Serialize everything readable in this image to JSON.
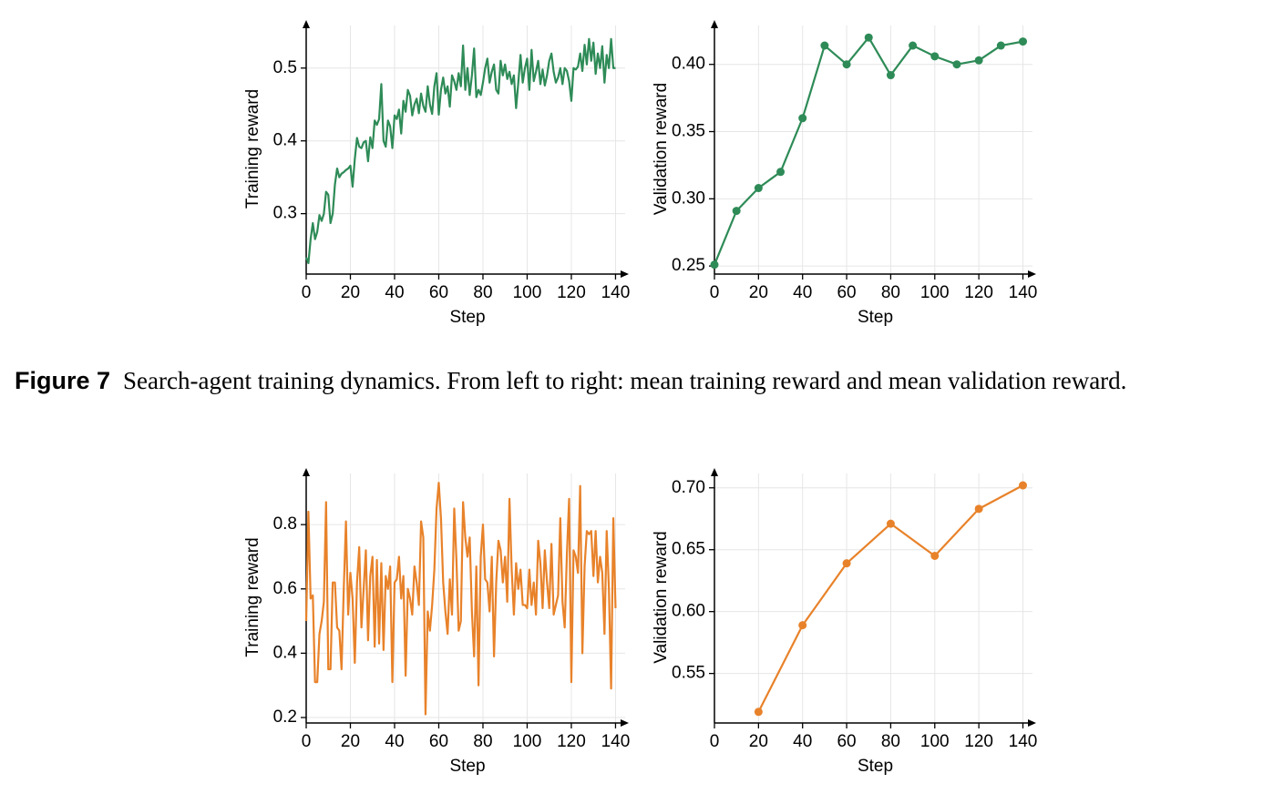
{
  "caption": {
    "label": "Figure 7",
    "text": "Search-agent training dynamics. From left to right: mean training reward and mean validation reward."
  },
  "chart_data": [
    {
      "type": "line",
      "xlabel": "Step",
      "ylabel": "Training reward",
      "color": "#2e8b57",
      "marker": false,
      "grid": true,
      "xlim": [
        0,
        146
      ],
      "xticks": [
        0,
        20,
        40,
        60,
        80,
        100,
        120,
        140
      ],
      "ylim": [
        0.217,
        0.566
      ],
      "yticks": [
        0.3,
        0.4,
        0.5
      ],
      "x": [
        0,
        1,
        2,
        3,
        4,
        5,
        6,
        7,
        8,
        9,
        10,
        11,
        12,
        13,
        14,
        15,
        16,
        17,
        18,
        19,
        20,
        21,
        22,
        23,
        24,
        25,
        26,
        27,
        28,
        29,
        30,
        31,
        32,
        33,
        34,
        35,
        36,
        37,
        38,
        39,
        40,
        41,
        42,
        43,
        44,
        45,
        46,
        47,
        48,
        49,
        50,
        51,
        52,
        53,
        54,
        55,
        56,
        57,
        58,
        59,
        60,
        61,
        62,
        63,
        64,
        65,
        66,
        67,
        68,
        69,
        70,
        71,
        72,
        73,
        74,
        75,
        76,
        77,
        78,
        79,
        80,
        81,
        82,
        83,
        84,
        85,
        86,
        87,
        88,
        89,
        90,
        91,
        92,
        93,
        94,
        95,
        96,
        97,
        98,
        99,
        100,
        101,
        102,
        103,
        104,
        105,
        106,
        107,
        108,
        109,
        110,
        111,
        112,
        113,
        114,
        115,
        116,
        117,
        118,
        119,
        120,
        121,
        122,
        123,
        124,
        125,
        126,
        127,
        128,
        129,
        130,
        131,
        132,
        133,
        134,
        135,
        136,
        137,
        138,
        139,
        140
      ],
      "values": [
        0.24,
        0.232,
        0.265,
        0.287,
        0.265,
        0.275,
        0.298,
        0.29,
        0.3,
        0.33,
        0.326,
        0.287,
        0.3,
        0.34,
        0.362,
        0.35,
        0.355,
        0.357,
        0.36,
        0.362,
        0.366,
        0.337,
        0.375,
        0.404,
        0.392,
        0.39,
        0.398,
        0.4,
        0.372,
        0.405,
        0.39,
        0.428,
        0.422,
        0.43,
        0.478,
        0.4,
        0.392,
        0.428,
        0.42,
        0.39,
        0.435,
        0.43,
        0.443,
        0.41,
        0.455,
        0.44,
        0.47,
        0.462,
        0.435,
        0.45,
        0.458,
        0.438,
        0.465,
        0.448,
        0.44,
        0.475,
        0.45,
        0.437,
        0.475,
        0.493,
        0.436,
        0.47,
        0.487,
        0.465,
        0.475,
        0.447,
        0.49,
        0.482,
        0.47,
        0.493,
        0.475,
        0.531,
        0.47,
        0.5,
        0.463,
        0.49,
        0.527,
        0.46,
        0.47,
        0.463,
        0.48,
        0.5,
        0.513,
        0.48,
        0.495,
        0.505,
        0.47,
        0.465,
        0.51,
        0.49,
        0.505,
        0.485,
        0.495,
        0.478,
        0.49,
        0.445,
        0.48,
        0.518,
        0.48,
        0.5,
        0.513,
        0.47,
        0.525,
        0.482,
        0.495,
        0.51,
        0.478,
        0.498,
        0.476,
        0.49,
        0.51,
        0.52,
        0.495,
        0.48,
        0.487,
        0.5,
        0.478,
        0.5,
        0.496,
        0.482,
        0.455,
        0.5,
        0.498,
        0.502,
        0.52,
        0.496,
        0.532,
        0.505,
        0.54,
        0.51,
        0.535,
        0.492,
        0.52,
        0.5,
        0.53,
        0.48,
        0.518,
        0.5,
        0.54,
        0.5,
        0.5
      ]
    },
    {
      "type": "line",
      "xlabel": "Step",
      "ylabel": "Validation reward",
      "color": "#2e8b57",
      "marker": true,
      "grid": true,
      "xlim": [
        0,
        146
      ],
      "xticks": [
        0,
        20,
        40,
        60,
        80,
        100,
        120,
        140
      ],
      "ylim": [
        0.244,
        0.433
      ],
      "yticks": [
        0.25,
        {
          "value": 0.3,
          "label": "0.30"
        },
        0.35,
        {
          "value": 0.4,
          "label": "0.40"
        }
      ],
      "x": [
        0,
        10,
        20,
        30,
        40,
        50,
        60,
        70,
        80,
        90,
        100,
        110,
        120,
        130,
        140
      ],
      "values": [
        0.251,
        0.291,
        0.308,
        0.32,
        0.36,
        0.414,
        0.4,
        0.42,
        0.392,
        0.414,
        0.406,
        0.4,
        0.403,
        0.414,
        0.417
      ]
    },
    {
      "type": "line",
      "xlabel": "Step",
      "ylabel": "Training reward",
      "color": "#e8822a",
      "marker": false,
      "grid": true,
      "xlim": [
        0,
        146
      ],
      "xticks": [
        0,
        20,
        40,
        60,
        80,
        100,
        120,
        140
      ],
      "ylim": [
        0.183,
        0.976
      ],
      "yticks": [
        0.2,
        0.4,
        0.6,
        0.8
      ],
      "x": [
        0,
        1,
        2,
        3,
        4,
        5,
        6,
        7,
        8,
        9,
        10,
        11,
        12,
        13,
        14,
        15,
        16,
        17,
        18,
        19,
        20,
        21,
        22,
        23,
        24,
        25,
        26,
        27,
        28,
        29,
        30,
        31,
        32,
        33,
        34,
        35,
        36,
        37,
        38,
        39,
        40,
        41,
        42,
        43,
        44,
        45,
        46,
        47,
        48,
        49,
        50,
        51,
        52,
        53,
        54,
        55,
        56,
        57,
        58,
        59,
        60,
        61,
        62,
        63,
        64,
        65,
        66,
        67,
        68,
        69,
        70,
        71,
        72,
        73,
        74,
        75,
        76,
        77,
        78,
        79,
        80,
        81,
        82,
        83,
        84,
        85,
        86,
        87,
        88,
        89,
        90,
        91,
        92,
        93,
        94,
        95,
        96,
        97,
        98,
        99,
        100,
        101,
        102,
        103,
        104,
        105,
        106,
        107,
        108,
        109,
        110,
        111,
        112,
        113,
        114,
        115,
        116,
        117,
        118,
        119,
        120,
        121,
        122,
        123,
        124,
        125,
        126,
        127,
        128,
        129,
        130,
        131,
        132,
        133,
        134,
        135,
        136,
        137,
        138,
        139,
        140
      ],
      "values": [
        0.5,
        0.84,
        0.57,
        0.58,
        0.31,
        0.31,
        0.46,
        0.5,
        0.56,
        0.87,
        0.35,
        0.35,
        0.62,
        0.62,
        0.48,
        0.47,
        0.35,
        0.6,
        0.81,
        0.52,
        0.65,
        0.57,
        0.37,
        0.62,
        0.73,
        0.48,
        0.6,
        0.72,
        0.44,
        0.64,
        0.7,
        0.42,
        0.69,
        0.43,
        0.68,
        0.41,
        0.64,
        0.6,
        0.67,
        0.31,
        0.62,
        0.63,
        0.7,
        0.57,
        0.64,
        0.33,
        0.6,
        0.57,
        0.52,
        0.67,
        0.62,
        0.55,
        0.81,
        0.76,
        0.21,
        0.53,
        0.47,
        0.55,
        0.66,
        0.85,
        0.93,
        0.82,
        0.62,
        0.53,
        0.46,
        0.63,
        0.52,
        0.85,
        0.69,
        0.47,
        0.5,
        0.87,
        0.76,
        0.7,
        0.76,
        0.53,
        0.39,
        0.67,
        0.3,
        0.7,
        0.8,
        0.63,
        0.62,
        0.53,
        0.7,
        0.39,
        0.62,
        0.75,
        0.72,
        0.62,
        0.7,
        0.56,
        0.88,
        0.66,
        0.52,
        0.68,
        0.6,
        0.66,
        0.55,
        0.55,
        0.54,
        0.66,
        0.55,
        0.62,
        0.52,
        0.75,
        0.68,
        0.54,
        0.72,
        0.62,
        0.54,
        0.74,
        0.52,
        0.55,
        0.58,
        0.82,
        0.56,
        0.48,
        0.71,
        0.88,
        0.31,
        0.72,
        0.7,
        0.65,
        0.92,
        0.4,
        0.67,
        0.78,
        0.77,
        0.78,
        0.64,
        0.78,
        0.62,
        0.7,
        0.65,
        0.46,
        0.78,
        0.6,
        0.29,
        0.82,
        0.54
      ]
    },
    {
      "type": "line",
      "xlabel": "Step",
      "ylabel": "Validation reward",
      "color": "#e8822a",
      "marker": true,
      "grid": true,
      "xlim": [
        0,
        146
      ],
      "xticks": [
        0,
        20,
        40,
        60,
        80,
        100,
        120,
        140
      ],
      "ylim": [
        0.51,
        0.716
      ],
      "yticks": [
        0.55,
        {
          "value": 0.6,
          "label": "0.60"
        },
        0.65,
        {
          "value": 0.7,
          "label": "0.70"
        }
      ],
      "x": [
        20,
        40,
        60,
        80,
        100,
        120,
        140
      ],
      "values": [
        0.519,
        0.589,
        0.639,
        0.671,
        0.645,
        0.683,
        0.702
      ]
    }
  ]
}
